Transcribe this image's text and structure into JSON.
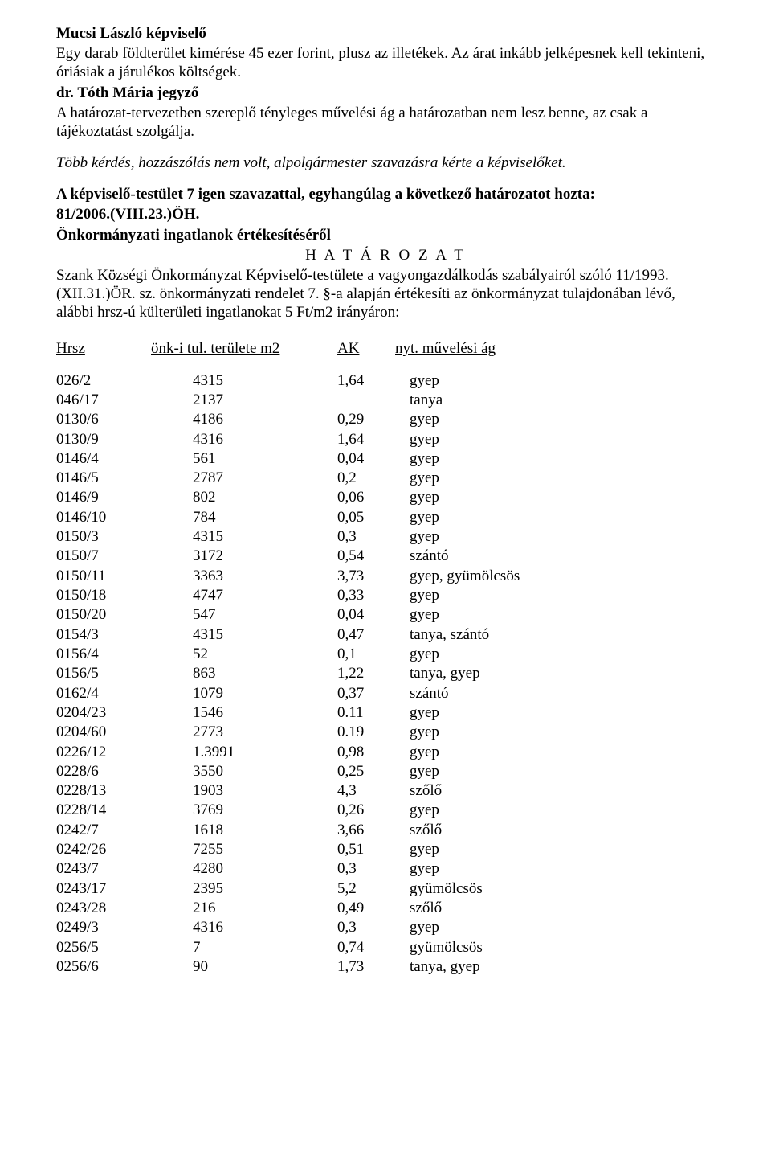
{
  "speaker1": {
    "name": "Mucsi László képviselő",
    "text": "Egy darab földterület kimérése 45 ezer forint, plusz az illetékek. Az árat inkább jelképesnek kell tekinteni, óriásiak a járulékos költségek."
  },
  "speaker2": {
    "name": "dr. Tóth Mária jegyző",
    "text": "A határozat-tervezetben szereplő tényleges művelési ág a határozatban nem lesz benne, az csak a tájékoztatást szolgálja."
  },
  "noQuestions": "Több kérdés, hozzászólás nem volt, alpolgármester szavazásra kérte a képviselőket.",
  "resolutionIntro": "A képviselő-testület 7 igen szavazattal, egyhangúlag a következő határozatot hozta:",
  "resolutionNumber": "81/2006.(VIII.23.)ÖH.",
  "resolutionTitle": "Önkormányzati ingatlanok értékesítéséről",
  "resolutionTypeWord": "H A T Á R O Z A T",
  "resolutionBody": "Szank Községi Önkormányzat Képviselő-testülete a vagyongazdálkodás szabályairól szóló 11/1993.(XII.31.)ÖR. sz. önkormányzati rendelet 7. §-a alapján értékesíti az önkormányzat tulajdonában lévő, alábbi hrsz-ú külterületi ingatlanokat 5 Ft/m2 irányáron:",
  "tableHeader": {
    "hrsz": "Hrsz",
    "area": "önk-i tul. területe m2",
    "ak": "AK",
    "nyt": "nyt. művelési ág"
  },
  "rows": [
    {
      "hrsz": "026/2",
      "area": "4315",
      "ak": "1,64",
      "nyt": "gyep"
    },
    {
      "hrsz": "046/17",
      "area": "2137",
      "ak": "",
      "nyt": "tanya"
    },
    {
      "hrsz": "0130/6",
      "area": "4186",
      "ak": "0,29",
      "nyt": "gyep"
    },
    {
      "hrsz": "0130/9",
      "area": "4316",
      "ak": "1,64",
      "nyt": "gyep"
    },
    {
      "hrsz": "0146/4",
      "area": "561",
      "ak": "0,04",
      "nyt": "gyep"
    },
    {
      "hrsz": "0146/5",
      "area": "2787",
      "ak": "0,2",
      "nyt": "gyep"
    },
    {
      "hrsz": "0146/9",
      "area": "802",
      "ak": "0,06",
      "nyt": "gyep"
    },
    {
      "hrsz": "0146/10",
      "area": "784",
      "ak": "0,05",
      "nyt": "gyep"
    },
    {
      "hrsz": "0150/3",
      "area": "4315",
      "ak": "0,3",
      "nyt": "gyep"
    },
    {
      "hrsz": "0150/7",
      "area": "3172",
      "ak": "0,54",
      "nyt": "szántó"
    },
    {
      "hrsz": "0150/11",
      "area": "3363",
      "ak": "3,73",
      "nyt": "gyep, gyümölcsös"
    },
    {
      "hrsz": "0150/18",
      "area": "4747",
      "ak": "0,33",
      "nyt": "gyep"
    },
    {
      "hrsz": "0150/20",
      "area": "547",
      "ak": "0,04",
      "nyt": "gyep"
    },
    {
      "hrsz": "0154/3",
      "area": "4315",
      "ak": "0,47",
      "nyt": "tanya, szántó"
    },
    {
      "hrsz": "0156/4",
      "area": "52",
      "ak": "0,1",
      "nyt": "gyep"
    },
    {
      "hrsz": "0156/5",
      "area": "863",
      "ak": "1,22",
      "nyt": "tanya, gyep"
    },
    {
      "hrsz": "0162/4",
      "area": "1079",
      "ak": "0,37",
      "nyt": "szántó"
    },
    {
      "hrsz": "0204/23",
      "area": "1546",
      "ak": "0.11",
      "nyt": "gyep"
    },
    {
      "hrsz": "0204/60",
      "area": "2773",
      "ak": "0.19",
      "nyt": "gyep"
    },
    {
      "hrsz": "0226/12",
      "area": "1.3991",
      "ak": "0,98",
      "nyt": "gyep"
    },
    {
      "hrsz": "0228/6",
      "area": "3550",
      "ak": "0,25",
      "nyt": "gyep"
    },
    {
      "hrsz": "0228/13",
      "area": "1903",
      "ak": "4,3",
      "nyt": "szőlő"
    },
    {
      "hrsz": "0228/14",
      "area": "3769",
      "ak": "0,26",
      "nyt": "gyep"
    },
    {
      "hrsz": "0242/7",
      "area": "1618",
      "ak": "3,66",
      "nyt": "szőlő"
    },
    {
      "hrsz": "0242/26",
      "area": "7255",
      "ak": "0,51",
      "nyt": "gyep"
    },
    {
      "hrsz": "0243/7",
      "area": "4280",
      "ak": "0,3",
      "nyt": "gyep"
    },
    {
      "hrsz": "0243/17",
      "area": "2395",
      "ak": "5,2",
      "nyt": "gyümölcsös"
    },
    {
      "hrsz": "0243/28",
      "area": "216",
      "ak": "0,49",
      "nyt": "szőlő"
    },
    {
      "hrsz": "0249/3",
      "area": "4316",
      "ak": "0,3",
      "nyt": "gyep"
    },
    {
      "hrsz": "0256/5",
      "area": "7",
      "ak": "0,74",
      "nyt": "gyümölcsös"
    },
    {
      "hrsz": "0256/6",
      "area": "90",
      "ak": "1,73",
      "nyt": "tanya, gyep"
    }
  ]
}
